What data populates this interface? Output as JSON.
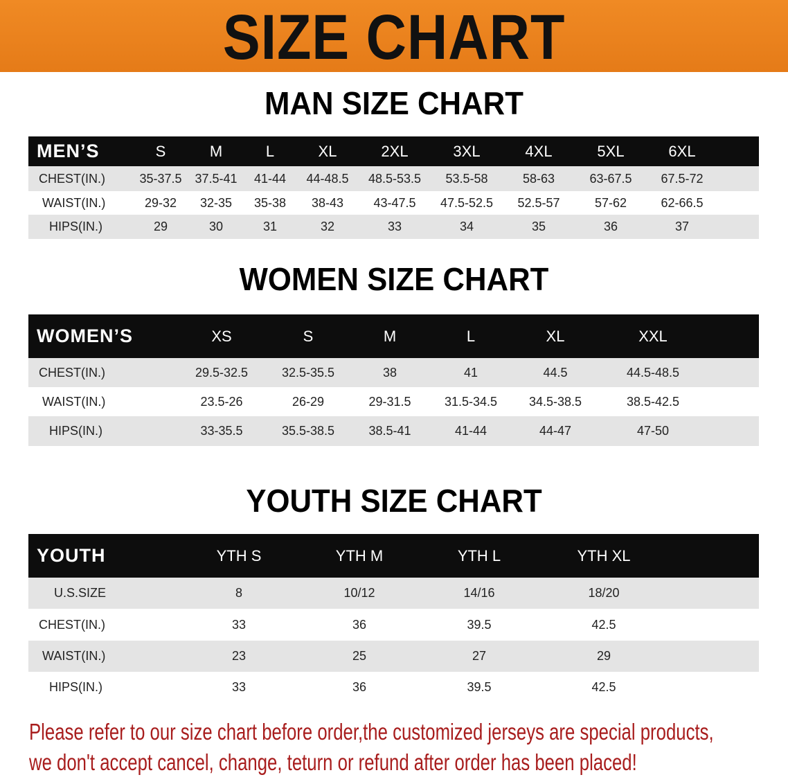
{
  "banner": {
    "title": "SIZE CHART",
    "color": "#ee8420"
  },
  "men": {
    "title": "MAN SIZE CHART",
    "header": [
      "MEN’S",
      "S",
      "M",
      "L",
      "XL",
      "2XL",
      "3XL",
      "4XL",
      "5XL",
      "6XL"
    ],
    "rows": [
      [
        "CHEST(IN.)",
        "35-37.5",
        "37.5-41",
        "41-44",
        "44-48.5",
        "48.5-53.5",
        "53.5-58",
        "58-63",
        "63-67.5",
        "67.5-72"
      ],
      [
        "WAIST(IN.)",
        "29-32",
        "32-35",
        "35-38",
        "38-43",
        "43-47.5",
        "47.5-52.5",
        "52.5-57",
        "57-62",
        "62-66.5"
      ],
      [
        "HIPS(IN.)",
        "29",
        "30",
        "31",
        "32",
        "33",
        "34",
        "35",
        "36",
        "37"
      ]
    ]
  },
  "women": {
    "title": "WOMEN SIZE CHART",
    "header": [
      "WOMEN’S",
      "XS",
      "S",
      "M",
      "L",
      "XL",
      "XXL"
    ],
    "rows": [
      [
        "CHEST(IN.)",
        "29.5-32.5",
        "32.5-35.5",
        "38",
        "41",
        "44.5",
        "44.5-48.5"
      ],
      [
        "WAIST(IN.)",
        "23.5-26",
        "26-29",
        "29-31.5",
        "31.5-34.5",
        "34.5-38.5",
        "38.5-42.5"
      ],
      [
        "HIPS(IN.)",
        "33-35.5",
        "35.5-38.5",
        "38.5-41",
        "41-44",
        "44-47",
        "47-50"
      ]
    ]
  },
  "youth": {
    "title": "YOUTH SIZE CHART",
    "header": [
      "YOUTH",
      "YTH S",
      "YTH M",
      "YTH L",
      "YTH XL"
    ],
    "rows": [
      [
        "U.S.SIZE",
        "8",
        "10/12",
        "14/16",
        "18/20"
      ],
      [
        "CHEST(IN.)",
        "33",
        "36",
        "39.5",
        "42.5"
      ],
      [
        "WAIST(IN.)",
        "23",
        "25",
        "27",
        "29"
      ],
      [
        "HIPS(IN.)",
        "33",
        "36",
        "39.5",
        "42.5"
      ]
    ]
  },
  "notice": {
    "line1": "Please refer to our size chart before order,the customized jerseys are special products,",
    "line2": "we don't accept cancel, change, teturn or refund after order has been placed!",
    "color": "#a81d1d"
  }
}
